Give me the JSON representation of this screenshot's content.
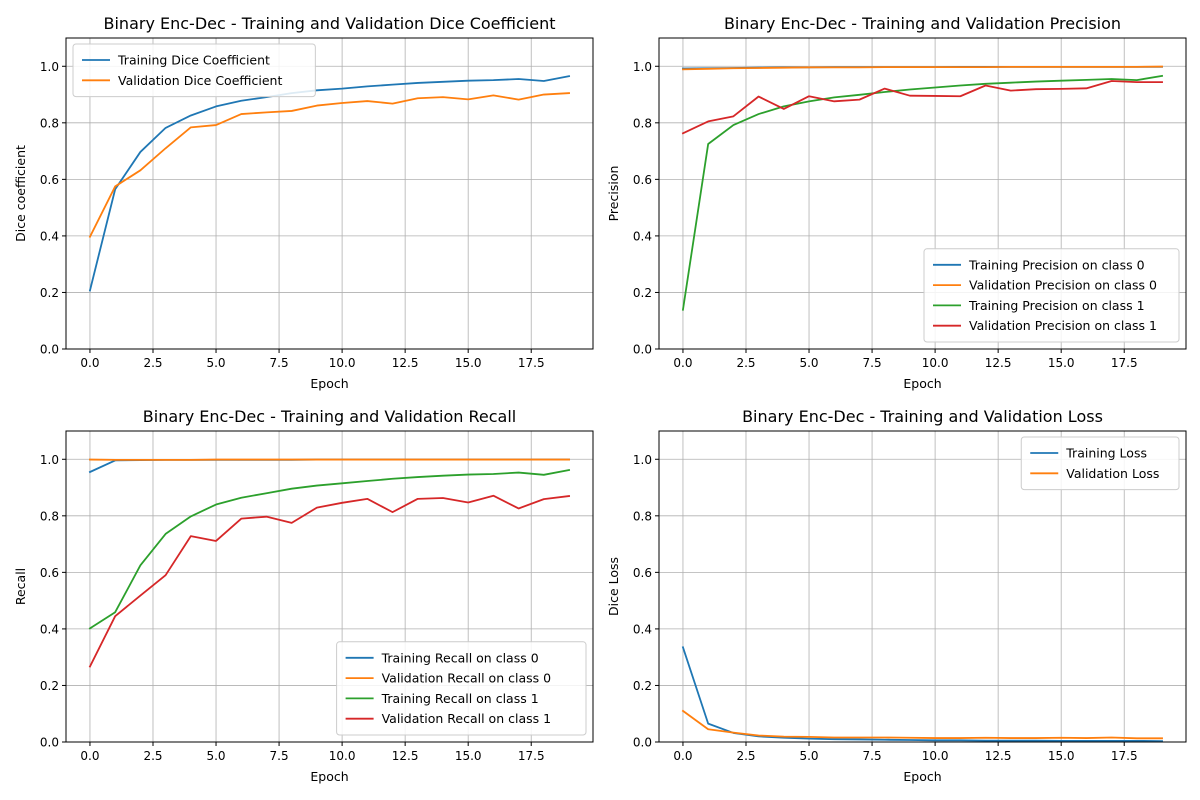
{
  "colors": {
    "blue": "#1f77b4",
    "orange": "#ff7f0e",
    "green": "#2ca02c",
    "red": "#d62728",
    "grid": "#b0b0b0"
  },
  "chart_data": [
    {
      "type": "line",
      "title": "Binary Enc-Dec - Training and Validation Dice Coefficient",
      "xlabel": "Epoch",
      "ylabel": "Dice coefficient",
      "xlim": [
        -0.95,
        19.95
      ],
      "ylim": [
        0,
        1.1
      ],
      "x_ticks": [
        0,
        2.5,
        5,
        7.5,
        10,
        12.5,
        15,
        17.5
      ],
      "x_tick_labels": [
        "0.0",
        "2.5",
        "5.0",
        "7.5",
        "10.0",
        "12.5",
        "15.0",
        "17.5"
      ],
      "y_ticks": [
        0,
        0.2,
        0.4,
        0.6,
        0.8,
        1.0
      ],
      "y_tick_labels": [
        "0.0",
        "0.2",
        "0.4",
        "0.6",
        "0.8",
        "1.0"
      ],
      "grid": true,
      "legend_position": "top-left",
      "x": [
        0,
        1,
        2,
        3,
        4,
        5,
        6,
        7,
        8,
        9,
        10,
        11,
        12,
        13,
        14,
        15,
        16,
        17,
        18,
        19
      ],
      "series": [
        {
          "name": "Training Dice Coefficient",
          "color": "#1f77b4",
          "values": [
            0.207,
            0.565,
            0.697,
            0.782,
            0.826,
            0.858,
            0.878,
            0.891,
            0.905,
            0.915,
            0.921,
            0.929,
            0.935,
            0.941,
            0.945,
            0.949,
            0.951,
            0.955,
            0.948,
            0.965
          ]
        },
        {
          "name": "Validation Dice Coefficient",
          "color": "#ff7f0e",
          "values": [
            0.397,
            0.575,
            0.632,
            0.71,
            0.784,
            0.792,
            0.831,
            0.837,
            0.842,
            0.861,
            0.87,
            0.877,
            0.868,
            0.887,
            0.891,
            0.883,
            0.897,
            0.882,
            0.9,
            0.905
          ]
        }
      ]
    },
    {
      "type": "line",
      "title": "Binary Enc-Dec - Training and Validation Precision",
      "xlabel": "Epoch",
      "ylabel": "Precision",
      "xlim": [
        -0.95,
        19.95
      ],
      "ylim": [
        0,
        1.1
      ],
      "x_ticks": [
        0,
        2.5,
        5,
        7.5,
        10,
        12.5,
        15,
        17.5
      ],
      "x_tick_labels": [
        "0.0",
        "2.5",
        "5.0",
        "7.5",
        "10.0",
        "12.5",
        "15.0",
        "17.5"
      ],
      "y_ticks": [
        0,
        0.2,
        0.4,
        0.6,
        0.8,
        1.0
      ],
      "y_tick_labels": [
        "0.0",
        "0.2",
        "0.4",
        "0.6",
        "0.8",
        "1.0"
      ],
      "grid": true,
      "legend_position": "bottom-right",
      "x": [
        0,
        1,
        2,
        3,
        4,
        5,
        6,
        7,
        8,
        9,
        10,
        11,
        12,
        13,
        14,
        15,
        16,
        17,
        18,
        19
      ],
      "series": [
        {
          "name": "Training Precision on class 0",
          "color": "#1f77b4",
          "values": [
            0.992,
            0.993,
            0.994,
            0.995,
            0.996,
            0.996,
            0.997,
            0.997,
            0.997,
            0.997,
            0.997,
            0.998,
            0.998,
            0.998,
            0.998,
            0.998,
            0.998,
            0.998,
            0.998,
            0.998
          ]
        },
        {
          "name": "Validation Precision on class 0",
          "color": "#ff7f0e",
          "values": [
            0.989,
            0.991,
            0.993,
            0.994,
            0.995,
            0.996,
            0.996,
            0.996,
            0.997,
            0.997,
            0.997,
            0.997,
            0.997,
            0.998,
            0.998,
            0.998,
            0.998,
            0.998,
            0.998,
            0.999
          ]
        },
        {
          "name": "Training Precision on class 1",
          "color": "#2ca02c",
          "values": [
            0.139,
            0.725,
            0.792,
            0.831,
            0.858,
            0.876,
            0.89,
            0.899,
            0.909,
            0.918,
            0.925,
            0.932,
            0.938,
            0.942,
            0.946,
            0.949,
            0.952,
            0.955,
            0.951,
            0.966
          ]
        },
        {
          "name": "Validation Precision on class 1",
          "color": "#d62728",
          "values": [
            0.763,
            0.805,
            0.823,
            0.893,
            0.849,
            0.894,
            0.876,
            0.882,
            0.921,
            0.896,
            0.895,
            0.894,
            0.932,
            0.914,
            0.919,
            0.92,
            0.922,
            0.948,
            0.944,
            0.944
          ]
        }
      ]
    },
    {
      "type": "line",
      "title": "Binary Enc-Dec - Training and Validation Recall",
      "xlabel": "Epoch",
      "ylabel": "Recall",
      "xlim": [
        -0.95,
        19.95
      ],
      "ylim": [
        0,
        1.1
      ],
      "x_ticks": [
        0,
        2.5,
        5,
        7.5,
        10,
        12.5,
        15,
        17.5
      ],
      "x_tick_labels": [
        "0.0",
        "2.5",
        "5.0",
        "7.5",
        "10.0",
        "12.5",
        "15.0",
        "17.5"
      ],
      "y_ticks": [
        0,
        0.2,
        0.4,
        0.6,
        0.8,
        1.0
      ],
      "y_tick_labels": [
        "0.0",
        "0.2",
        "0.4",
        "0.6",
        "0.8",
        "1.0"
      ],
      "grid": true,
      "legend_position": "bottom-right",
      "x": [
        0,
        1,
        2,
        3,
        4,
        5,
        6,
        7,
        8,
        9,
        10,
        11,
        12,
        13,
        14,
        15,
        16,
        17,
        18,
        19
      ],
      "series": [
        {
          "name": "Training Recall on class 0",
          "color": "#1f77b4",
          "values": [
            0.955,
            0.996,
            0.997,
            0.998,
            0.998,
            0.998,
            0.998,
            0.998,
            0.998,
            0.999,
            0.999,
            0.999,
            0.999,
            0.999,
            0.999,
            0.999,
            0.999,
            0.999,
            0.999,
            0.999
          ]
        },
        {
          "name": "Validation Recall on class 0",
          "color": "#ff7f0e",
          "values": [
            0.999,
            0.998,
            0.998,
            0.998,
            0.998,
            0.999,
            0.999,
            0.999,
            0.999,
            0.999,
            0.999,
            0.999,
            0.999,
            0.999,
            0.999,
            0.999,
            0.999,
            0.999,
            0.999,
            0.999
          ]
        },
        {
          "name": "Training Recall on class 1",
          "color": "#2ca02c",
          "values": [
            0.402,
            0.459,
            0.625,
            0.736,
            0.798,
            0.84,
            0.864,
            0.88,
            0.896,
            0.907,
            0.915,
            0.923,
            0.931,
            0.937,
            0.942,
            0.946,
            0.948,
            0.953,
            0.945,
            0.962
          ]
        },
        {
          "name": "Validation Recall on class 1",
          "color": "#d62728",
          "values": [
            0.267,
            0.445,
            0.518,
            0.59,
            0.728,
            0.711,
            0.79,
            0.797,
            0.775,
            0.829,
            0.846,
            0.86,
            0.813,
            0.86,
            0.863,
            0.847,
            0.871,
            0.826,
            0.859,
            0.87
          ]
        }
      ]
    },
    {
      "type": "line",
      "title": "Binary Enc-Dec - Training and Validation Loss",
      "xlabel": "Epoch",
      "ylabel": "Dice Loss",
      "xlim": [
        -0.95,
        19.95
      ],
      "ylim": [
        0,
        1.1
      ],
      "x_ticks": [
        0,
        2.5,
        5,
        7.5,
        10,
        12.5,
        15,
        17.5
      ],
      "x_tick_labels": [
        "0.0",
        "2.5",
        "5.0",
        "7.5",
        "10.0",
        "12.5",
        "15.0",
        "17.5"
      ],
      "y_ticks": [
        0,
        0.2,
        0.4,
        0.6,
        0.8,
        1.0
      ],
      "y_tick_labels": [
        "0.0",
        "0.2",
        "0.4",
        "0.6",
        "0.8",
        "1.0"
      ],
      "grid": true,
      "legend_position": "top-right",
      "x": [
        0,
        1,
        2,
        3,
        4,
        5,
        6,
        7,
        8,
        9,
        10,
        11,
        12,
        13,
        14,
        15,
        16,
        17,
        18,
        19
      ],
      "series": [
        {
          "name": "Training Loss",
          "color": "#1f77b4",
          "values": [
            0.335,
            0.065,
            0.032,
            0.02,
            0.015,
            0.012,
            0.01,
            0.009,
            0.008,
            0.007,
            0.006,
            0.006,
            0.005,
            0.005,
            0.005,
            0.004,
            0.004,
            0.004,
            0.004,
            0.003
          ]
        },
        {
          "name": "Validation Loss",
          "color": "#ff7f0e",
          "values": [
            0.11,
            0.045,
            0.033,
            0.023,
            0.019,
            0.018,
            0.016,
            0.016,
            0.016,
            0.015,
            0.014,
            0.014,
            0.015,
            0.014,
            0.014,
            0.015,
            0.014,
            0.016,
            0.013,
            0.013
          ]
        }
      ]
    }
  ]
}
